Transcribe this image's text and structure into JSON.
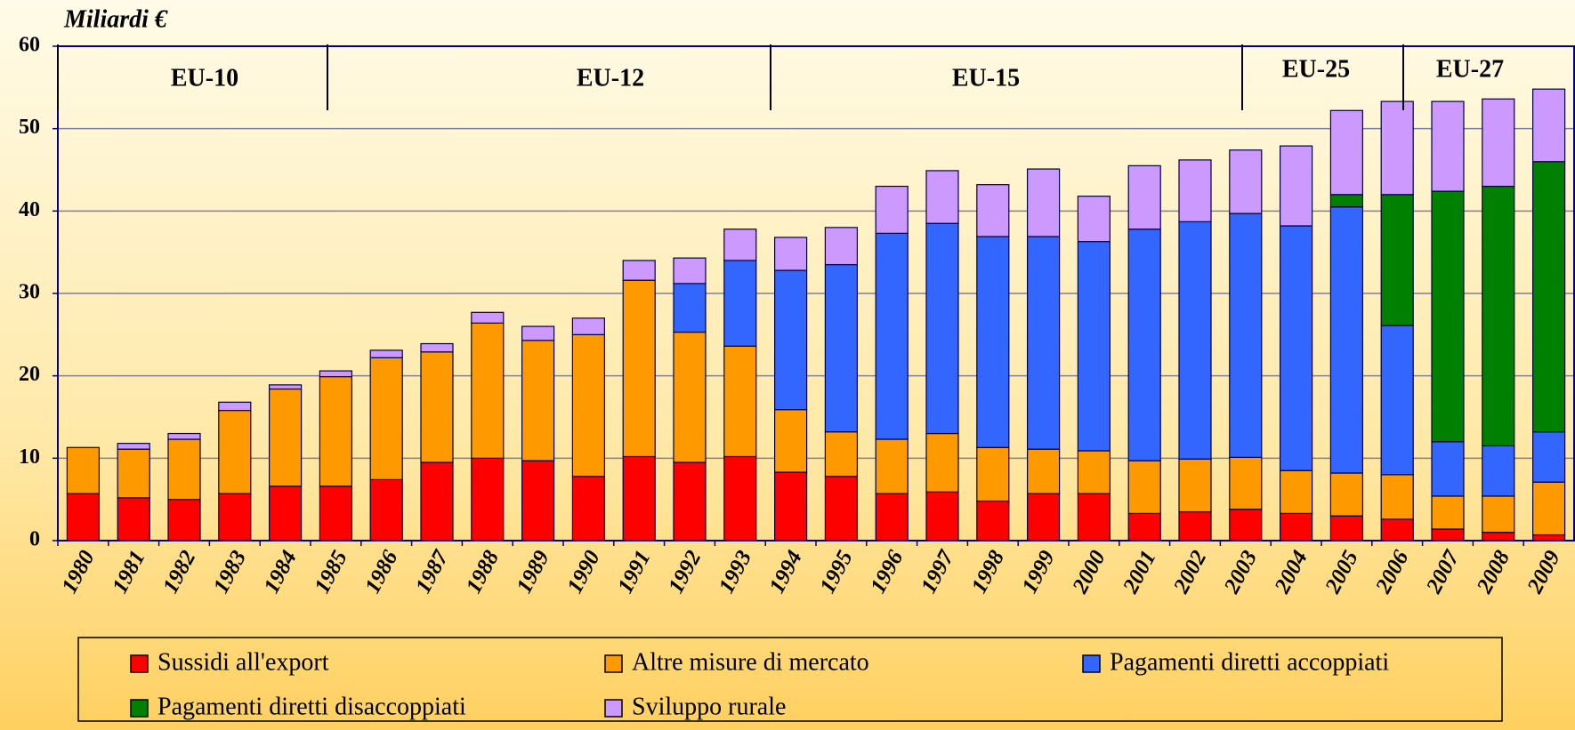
{
  "chart_data": {
    "type": "stacked_bar",
    "title": "Miliardi €",
    "categories": [
      "1980",
      "1981",
      "1982",
      "1983",
      "1984",
      "1985",
      "1986",
      "1987",
      "1988",
      "1989",
      "1990",
      "1991",
      "1992",
      "1993",
      "1994",
      "1995",
      "1996",
      "1997",
      "1998",
      "1999",
      "2000",
      "2001",
      "2002",
      "2003",
      "2004",
      "2005",
      "2006",
      "2007",
      "2008",
      "2009"
    ],
    "series": [
      {
        "name": "Sussidi all'export",
        "color": "#ff0000",
        "values": [
          5.7,
          5.2,
          5.0,
          5.7,
          6.6,
          6.6,
          7.4,
          9.5,
          10.0,
          9.7,
          7.8,
          10.2,
          9.5,
          10.2,
          8.3,
          7.8,
          5.7,
          5.9,
          4.8,
          5.7,
          5.7,
          3.3,
          3.5,
          3.8,
          3.3,
          3.0,
          2.6,
          1.4,
          1.0,
          0.7
        ]
      },
      {
        "name": "Altre misure di mercato",
        "color": "#ff9900",
        "values": [
          5.6,
          5.9,
          7.3,
          10.1,
          11.8,
          13.3,
          14.8,
          13.4,
          16.4,
          14.6,
          17.2,
          21.4,
          15.8,
          13.4,
          7.6,
          5.4,
          6.6,
          7.1,
          6.5,
          5.4,
          5.2,
          6.4,
          6.4,
          6.3,
          5.2,
          5.2,
          5.4,
          4.0,
          4.4,
          6.4
        ]
      },
      {
        "name": "Pagamenti diretti accoppiati",
        "color": "#3366ff",
        "values": [
          0,
          0,
          0,
          0,
          0,
          0,
          0,
          0,
          0,
          0,
          0,
          0,
          5.9,
          10.4,
          16.9,
          20.3,
          25.0,
          25.5,
          25.6,
          25.8,
          25.4,
          28.1,
          28.8,
          29.6,
          29.7,
          32.3,
          18.1,
          6.6,
          6.1,
          6.1
        ]
      },
      {
        "name": "Pagamenti diretti disaccoppiati",
        "color": "#008000",
        "values": [
          0,
          0,
          0,
          0,
          0,
          0,
          0,
          0,
          0,
          0,
          0,
          0,
          0,
          0,
          0,
          0,
          0,
          0,
          0,
          0,
          0,
          0,
          0,
          0,
          0,
          1.5,
          15.9,
          30.4,
          31.5,
          32.8
        ]
      },
      {
        "name": "Sviluppo rurale",
        "color": "#cc99ff",
        "values": [
          0,
          0.7,
          0.7,
          1.0,
          0.5,
          0.7,
          0.9,
          1.0,
          1.3,
          1.7,
          2.0,
          2.4,
          3.1,
          3.8,
          4.0,
          4.5,
          5.7,
          6.4,
          6.3,
          8.2,
          5.5,
          7.7,
          7.5,
          7.7,
          9.7,
          10.2,
          11.3,
          10.9,
          10.6,
          8.8
        ]
      }
    ],
    "annotations": [
      "EU-10",
      "EU-12",
      "EU-15",
      "EU-25",
      "EU-27"
    ],
    "ylim": [
      0,
      60
    ],
    "yticks": [
      0,
      10,
      20,
      30,
      40,
      50,
      60
    ],
    "grid": true
  }
}
